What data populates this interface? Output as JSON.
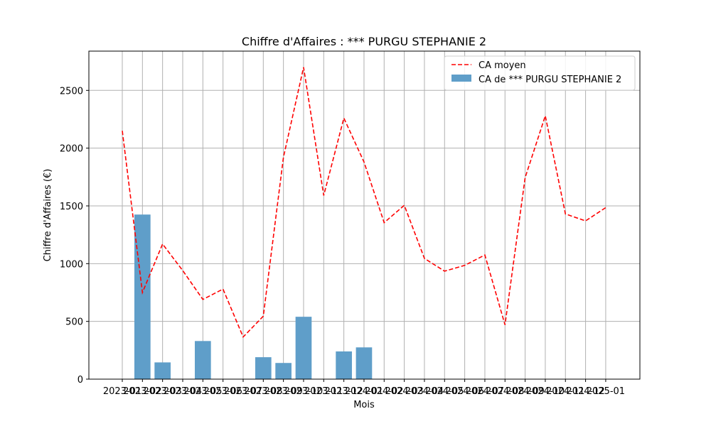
{
  "chart_data": {
    "type": "bar",
    "title": "Chiffre d'Affaires : *** PURGU STEPHANIE 2",
    "xlabel": "Mois",
    "ylabel": "Chiffre d'Affaires (€)",
    "categories": [
      "2023-01",
      "2023-02",
      "2023-03",
      "2023-04",
      "2023-05",
      "2023-06",
      "2023-07",
      "2023-08",
      "2023-09",
      "2023-10",
      "2023-11",
      "2023-12",
      "2024-01",
      "2024-02",
      "2024-03",
      "2024-04",
      "2024-05",
      "2024-06",
      "2024-07",
      "2024-08",
      "2024-09",
      "2024-10",
      "2024-11",
      "2024-12",
      "2025-01"
    ],
    "ylim": [
      0,
      2840
    ],
    "yticks": [
      0,
      500,
      1000,
      1500,
      2000,
      2500
    ],
    "grid": true,
    "legend_position": "top-right",
    "series": [
      {
        "name": "CA moyen",
        "kind": "line",
        "style": "dashed",
        "color": "#ff0000",
        "values": [
          2150,
          750,
          1170,
          940,
          690,
          780,
          365,
          545,
          1920,
          2700,
          1590,
          2260,
          1880,
          1355,
          1505,
          1045,
          935,
          985,
          1075,
          470,
          1745,
          2280,
          1430,
          1370,
          1485
        ]
      },
      {
        "name": "CA de *** PURGU STEPHANIE 2",
        "kind": "bar",
        "color": "#5f9ec9",
        "values": [
          null,
          1425,
          145,
          null,
          330,
          null,
          null,
          190,
          140,
          540,
          null,
          240,
          275,
          null,
          null,
          null,
          null,
          null,
          null,
          null,
          null,
          null,
          null,
          null,
          null
        ]
      }
    ]
  }
}
